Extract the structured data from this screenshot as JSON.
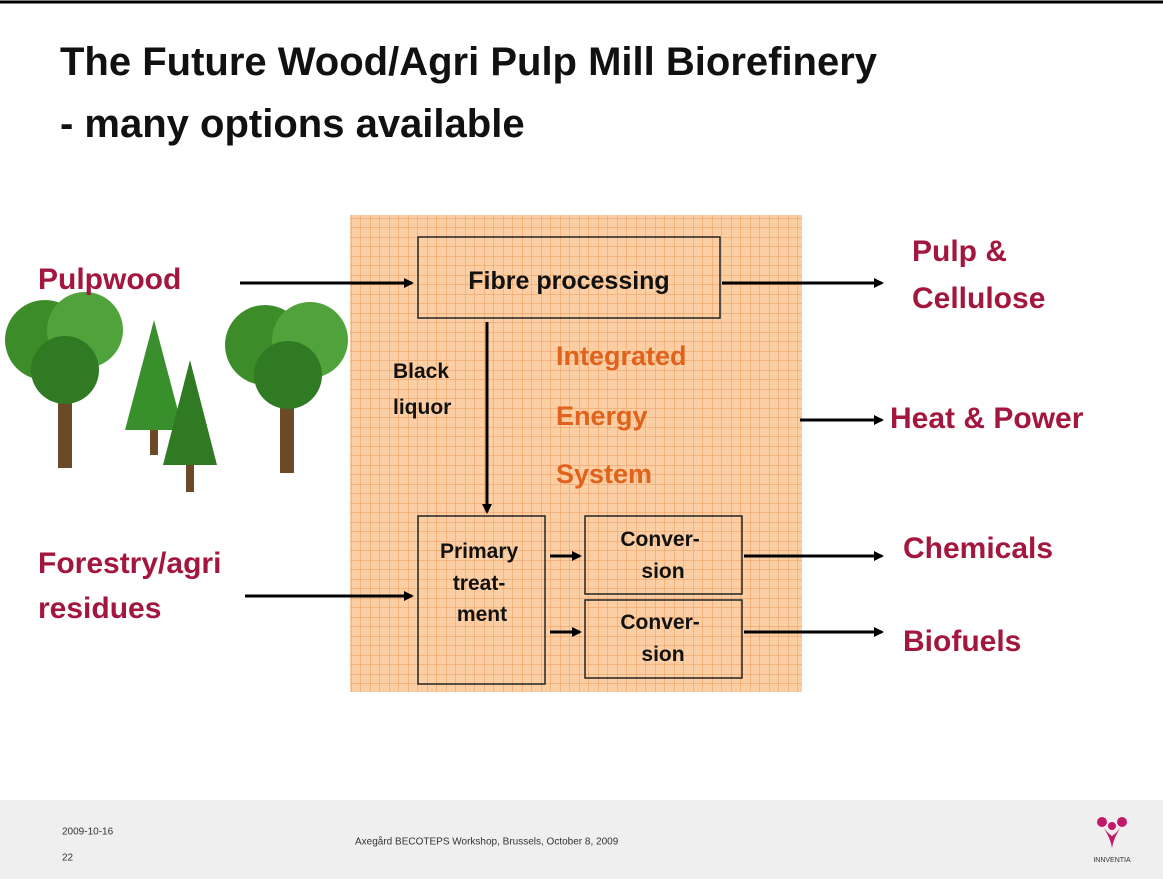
{
  "header": {
    "title_lines": [
      "The Future Wood/Agri Pulp Mill Biorefinery",
      "-  many options available"
    ]
  },
  "inputs": [
    {
      "lines": [
        "Pulpwood"
      ]
    },
    {
      "lines": [
        "Forestry/agri",
        "residues"
      ]
    }
  ],
  "nodes": [
    {
      "lines": [
        "Fibre processing"
      ]
    },
    {
      "lines": [
        "Primary",
        "treat-",
        "ment"
      ]
    },
    {
      "lines": [
        "Conver-",
        "sion"
      ]
    },
    {
      "lines": [
        "Conver-",
        "sion"
      ]
    }
  ],
  "edge_label": {
    "lines": [
      "Black",
      "liquor"
    ]
  },
  "center_label": {
    "lines": [
      "Integrated",
      "Energy",
      "System"
    ]
  },
  "outputs": [
    {
      "lines": [
        "Pulp &",
        "Cellulose"
      ]
    },
    {
      "lines": [
        "Heat & Power"
      ]
    },
    {
      "lines": [
        "Chemicals"
      ]
    },
    {
      "lines": [
        "Biofuels"
      ]
    }
  ],
  "footer": {
    "date": "2009-10-16",
    "page": "22",
    "event": "Axegård BECOTEPS Workshop, Brussels, October 8, 2009",
    "logo": "INNVENTIA"
  }
}
